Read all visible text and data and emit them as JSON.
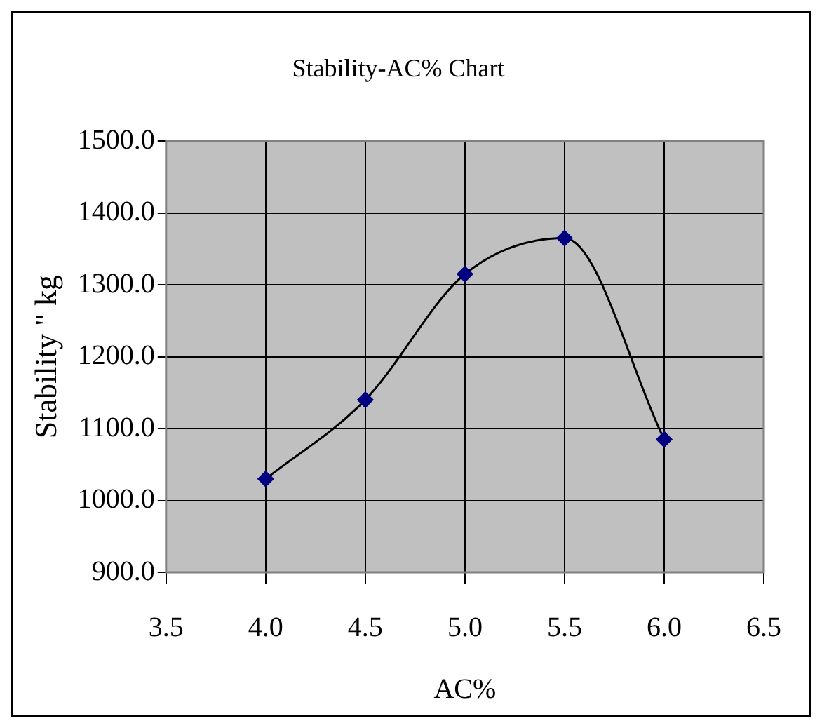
{
  "chart_data": {
    "type": "line",
    "title": "Stability-AC% Chart",
    "xlabel": "AC%",
    "ylabel": "Stability \" kg",
    "x": [
      4.0,
      4.5,
      5.0,
      5.5,
      6.0
    ],
    "series": [
      {
        "color": "#000080",
        "values": [
          1030,
          1140,
          1315,
          1365,
          1085
        ]
      }
    ],
    "xlim": [
      3.5,
      6.5
    ],
    "xticks": [
      {
        "value": 3.5,
        "label": "3.5"
      },
      {
        "value": 4,
        "label": "4.0"
      },
      {
        "value": 4.5,
        "label": "4.5"
      },
      {
        "value": 5,
        "label": "5.0"
      },
      {
        "value": 5.5,
        "label": "5.5"
      },
      {
        "value": 6,
        "label": "6.0"
      },
      {
        "value": 6.5,
        "label": "6.5"
      }
    ],
    "ylim": [
      900,
      1500
    ],
    "yticks": [
      {
        "value": 900,
        "label": "900.0"
      },
      {
        "value": 1000,
        "label": "1000.0"
      },
      {
        "value": 1100,
        "label": "1100.0"
      },
      {
        "value": 1200,
        "label": "1200.0"
      },
      {
        "value": 1300,
        "label": "1300.0"
      },
      {
        "value": 1400,
        "label": "1400.0"
      },
      {
        "value": 1500,
        "label": "1500.0"
      }
    ],
    "grid": true,
    "legend": false,
    "marker": "diamond",
    "line_style": "solid"
  }
}
